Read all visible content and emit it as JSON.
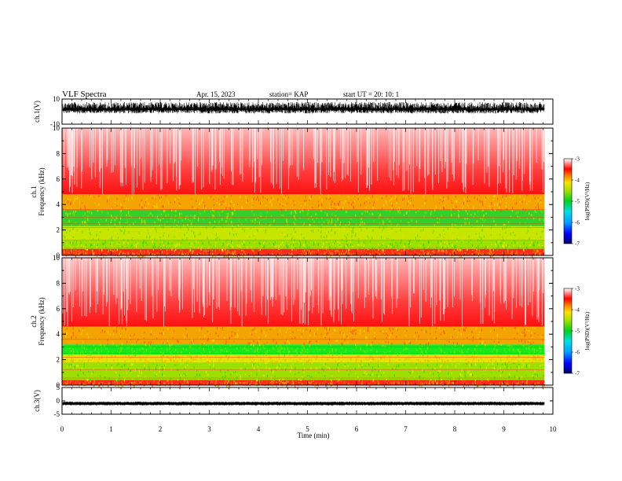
{
  "header": {
    "title": "VLF Spectra",
    "date": "Apr. 15, 2023",
    "station": "station= KAP",
    "start": "start  UT  =   20: 10: 1"
  },
  "chart_data": [
    {
      "type": "line",
      "panel": "ch.1 waveform",
      "ylabel": "ch.1(V)",
      "ylim": [
        -10,
        10
      ],
      "y_tick_labels": [
        "10",
        "-10"
      ],
      "note_visible": "dense black signal, roughly +7 to -1 V"
    },
    {
      "type": "heatmap",
      "panel": "ch.1 spectrogram",
      "ylabel": "ch.1 Frequency (kHz)",
      "ylim": [
        0,
        10
      ],
      "y_tick_labels": [
        "0",
        "2",
        "4",
        "6",
        "8",
        "10"
      ],
      "colorbar": {
        "label": "log(PSD)(V²/Hz)",
        "range": [
          -7,
          -3
        ],
        "tick_labels": [
          "-3",
          "-4",
          "-5",
          "-6",
          "-7"
        ]
      },
      "bands_kHz": [
        {
          "from": 0.0,
          "to": 0.5,
          "level": "red/yellow lines"
        },
        {
          "from": 0.5,
          "to": 1.2,
          "level": "green/yellow"
        },
        {
          "from": 1.2,
          "to": 2.3,
          "level": "yellow-green"
        },
        {
          "from": 2.3,
          "to": 3.6,
          "level": "green"
        },
        {
          "from": 3.6,
          "to": 4.8,
          "level": "yellow/orange"
        },
        {
          "from": 4.8,
          "to": 10.0,
          "level": "red, fading to white"
        }
      ]
    },
    {
      "type": "heatmap",
      "panel": "ch.2 spectrogram",
      "ylabel": "ch.2 Frequency (kHz)",
      "ylim": [
        0,
        10
      ],
      "y_tick_labels": [
        "0",
        "2",
        "4",
        "6",
        "8",
        "10"
      ],
      "colorbar": {
        "label": "log(PSD)(V²/Hz)",
        "range": [
          -7,
          -3
        ],
        "tick_labels": [
          "-3",
          "-4",
          "-5",
          "-6",
          "-7"
        ]
      },
      "bands_kHz": [
        {
          "from": 0.0,
          "to": 0.4,
          "level": "red/yellow lines"
        },
        {
          "from": 0.4,
          "to": 1.8,
          "level": "green/yellow"
        },
        {
          "from": 1.8,
          "to": 2.4,
          "level": "yellow"
        },
        {
          "from": 2.4,
          "to": 3.2,
          "level": "bright green"
        },
        {
          "from": 3.2,
          "to": 4.6,
          "level": "yellow/orange"
        },
        {
          "from": 4.6,
          "to": 10.0,
          "level": "red, fading to white"
        }
      ]
    },
    {
      "type": "line",
      "panel": "ch.3 waveform",
      "ylabel": "ch.3(V)",
      "ylim": [
        -5,
        5
      ],
      "y_tick_labels": [
        "5",
        "0",
        "-5"
      ],
      "note_visible": "thick black band near -1 V"
    }
  ],
  "x_axis": {
    "label": "Time  (min)",
    "range": [
      0,
      10
    ],
    "tick_labels": [
      "0",
      "1",
      "2",
      "3",
      "4",
      "5",
      "6",
      "7",
      "8",
      "9",
      "10"
    ],
    "data_end_min": 9.83
  }
}
